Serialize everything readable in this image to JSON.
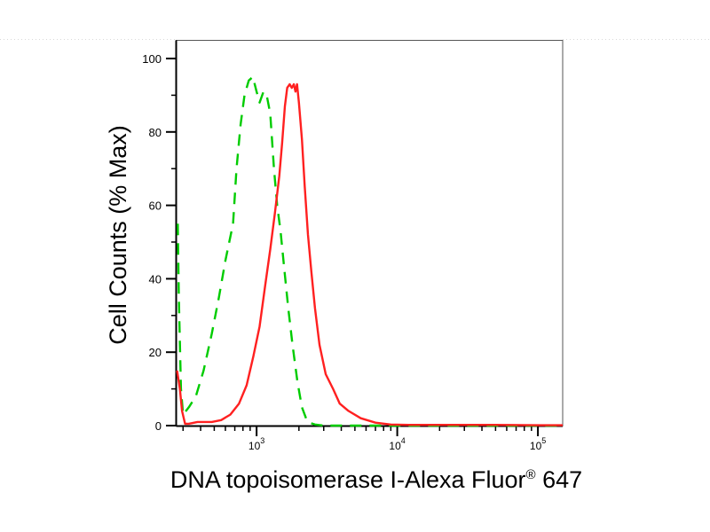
{
  "chart_data": {
    "type": "line",
    "title": "",
    "xlabel": "DNA topoisomerase I-Alexa Fluor",
    "xlabel_superscript": "®",
    "xlabel_suffix": " 647",
    "ylabel": "Cell Counts (% Max)",
    "xscale": "log",
    "xlim": [
      270,
      150000
    ],
    "ylim": [
      0,
      100
    ],
    "yticks": [
      0,
      20,
      40,
      60,
      80,
      100
    ],
    "xticks": [
      {
        "base": "10",
        "exp": "3",
        "value": 1000
      },
      {
        "base": "10",
        "exp": "4",
        "value": 10000
      },
      {
        "base": "10",
        "exp": "5",
        "value": 100000
      }
    ],
    "grid": false,
    "legend": "none",
    "series": [
      {
        "color": "#00cc00",
        "style": "dashed",
        "points": [
          [
            275,
            55
          ],
          [
            280,
            35
          ],
          [
            290,
            10
          ],
          [
            300,
            3
          ],
          [
            330,
            5
          ],
          [
            370,
            8
          ],
          [
            420,
            15
          ],
          [
            480,
            25
          ],
          [
            540,
            35
          ],
          [
            600,
            45
          ],
          [
            680,
            55
          ],
          [
            720,
            70
          ],
          [
            770,
            82
          ],
          [
            820,
            90
          ],
          [
            880,
            94
          ],
          [
            940,
            95
          ],
          [
            1000,
            91
          ],
          [
            1050,
            88
          ],
          [
            1120,
            91
          ],
          [
            1180,
            90
          ],
          [
            1250,
            85
          ],
          [
            1330,
            70
          ],
          [
            1400,
            60
          ],
          [
            1480,
            53
          ],
          [
            1580,
            42
          ],
          [
            1680,
            32
          ],
          [
            1800,
            22
          ],
          [
            1950,
            12
          ],
          [
            2100,
            5
          ],
          [
            2300,
            1
          ],
          [
            2600,
            0.3
          ],
          [
            3000,
            0
          ],
          [
            150000,
            0
          ]
        ]
      },
      {
        "color": "#ff2020",
        "style": "solid",
        "points": [
          [
            272,
            15
          ],
          [
            285,
            10
          ],
          [
            295,
            4
          ],
          [
            310,
            0.5
          ],
          [
            330,
            0.5
          ],
          [
            380,
            1
          ],
          [
            480,
            1
          ],
          [
            560,
            1.5
          ],
          [
            650,
            3
          ],
          [
            750,
            6
          ],
          [
            850,
            11
          ],
          [
            950,
            19
          ],
          [
            1050,
            27
          ],
          [
            1150,
            38
          ],
          [
            1250,
            48
          ],
          [
            1350,
            58
          ],
          [
            1450,
            68
          ],
          [
            1520,
            77
          ],
          [
            1590,
            87
          ],
          [
            1650,
            92
          ],
          [
            1720,
            93
          ],
          [
            1780,
            92
          ],
          [
            1840,
            93
          ],
          [
            1890,
            91
          ],
          [
            1940,
            93
          ],
          [
            2000,
            88
          ],
          [
            2100,
            78
          ],
          [
            2200,
            65
          ],
          [
            2320,
            52
          ],
          [
            2450,
            42
          ],
          [
            2600,
            32
          ],
          [
            2800,
            22
          ],
          [
            3100,
            14
          ],
          [
            3500,
            10
          ],
          [
            3900,
            6
          ],
          [
            4500,
            4
          ],
          [
            5500,
            2
          ],
          [
            7000,
            0.8
          ],
          [
            9000,
            0.3
          ],
          [
            12000,
            0.2
          ],
          [
            20000,
            0.2
          ],
          [
            50000,
            0.2
          ],
          [
            100000,
            0.1
          ],
          [
            150000,
            0.1
          ]
        ]
      }
    ]
  }
}
